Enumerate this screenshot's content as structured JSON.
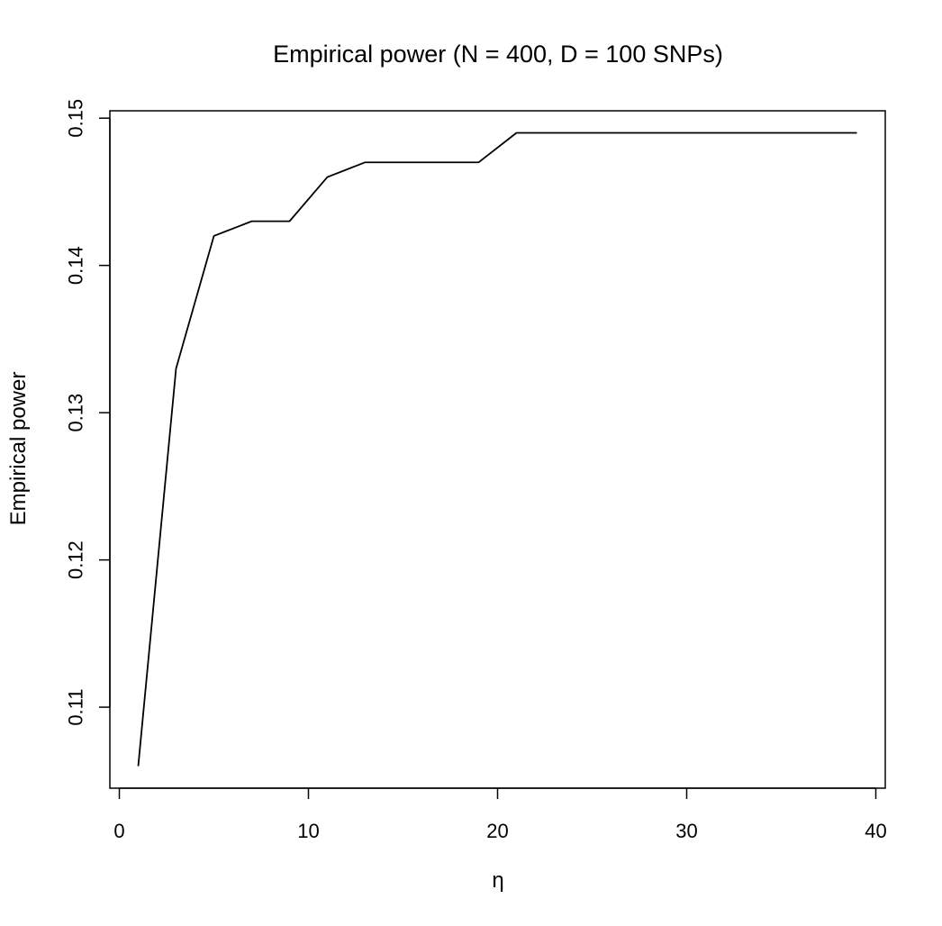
{
  "chart_data": {
    "type": "line",
    "title": "Empirical power (N = 400, D = 100 SNPs)",
    "xlabel": "η",
    "ylabel": "Empirical power",
    "xlim": [
      -0.5,
      40.5
    ],
    "ylim": [
      0.1045,
      0.1505
    ],
    "xticks": [
      0,
      10,
      20,
      30,
      40
    ],
    "xtick_labels": [
      "0",
      "10",
      "20",
      "30",
      "40"
    ],
    "yticks": [
      0.11,
      0.12,
      0.13,
      0.14,
      0.15
    ],
    "ytick_labels": [
      "0.11",
      "0.12",
      "0.13",
      "0.14",
      "0.15"
    ],
    "grid": false,
    "series": [
      {
        "x": [
          1,
          3,
          5,
          7,
          9,
          11,
          13,
          15,
          17,
          19,
          21,
          23,
          25,
          27,
          29,
          31,
          33,
          35,
          37,
          39
        ],
        "y": [
          0.106,
          0.133,
          0.142,
          0.143,
          0.143,
          0.146,
          0.147,
          0.147,
          0.147,
          0.147,
          0.149,
          0.149,
          0.149,
          0.149,
          0.149,
          0.149,
          0.149,
          0.149,
          0.149,
          0.149
        ],
        "color": "#000000"
      }
    ]
  }
}
